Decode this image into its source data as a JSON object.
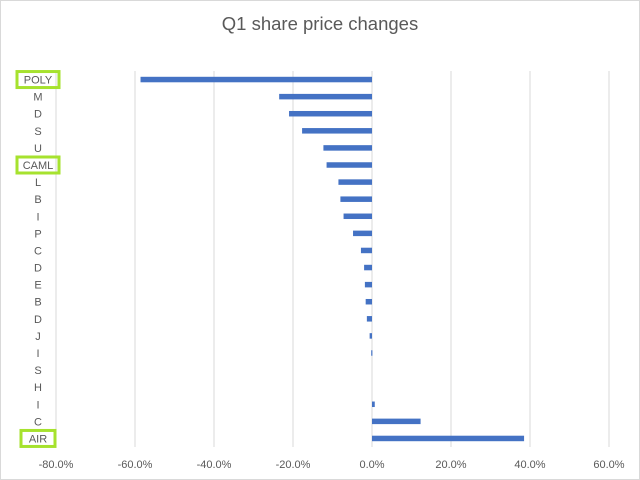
{
  "chart_data": {
    "type": "bar",
    "orientation": "horizontal",
    "title": "Q1 share price changes",
    "xlabel": "",
    "ylabel": "",
    "xlim": [
      -0.8,
      0.6
    ],
    "xticks": [
      -0.8,
      -0.6,
      -0.4,
      -0.2,
      0.0,
      0.2,
      0.4,
      0.6
    ],
    "xtick_labels": [
      "-80.0%",
      "-60.0%",
      "-40.0%",
      "-20.0%",
      "0.0%",
      "20.0%",
      "40.0%",
      "60.0%"
    ],
    "grid": true,
    "legend": "none",
    "categories": [
      "POLY",
      "M",
      "D",
      "S",
      "U",
      "CAML",
      "L",
      "B",
      "I",
      "P",
      "C",
      "D",
      "E",
      "B",
      "D",
      "J",
      "I",
      "S",
      "H",
      "I",
      "C",
      "AIR"
    ],
    "values": [
      -0.586,
      -0.235,
      -0.21,
      -0.177,
      -0.123,
      -0.115,
      -0.085,
      -0.08,
      -0.072,
      -0.048,
      -0.028,
      -0.02,
      -0.018,
      -0.016,
      -0.013,
      -0.006,
      -0.002,
      0.0,
      0.0,
      0.007,
      0.123,
      0.385
    ],
    "highlighted": [
      "POLY",
      "CAML",
      "AIR"
    ],
    "colors": {
      "bar": "#4472c4",
      "highlight": "#a6e22e",
      "grid": "#d9d9d9",
      "text": "#595959"
    }
  }
}
